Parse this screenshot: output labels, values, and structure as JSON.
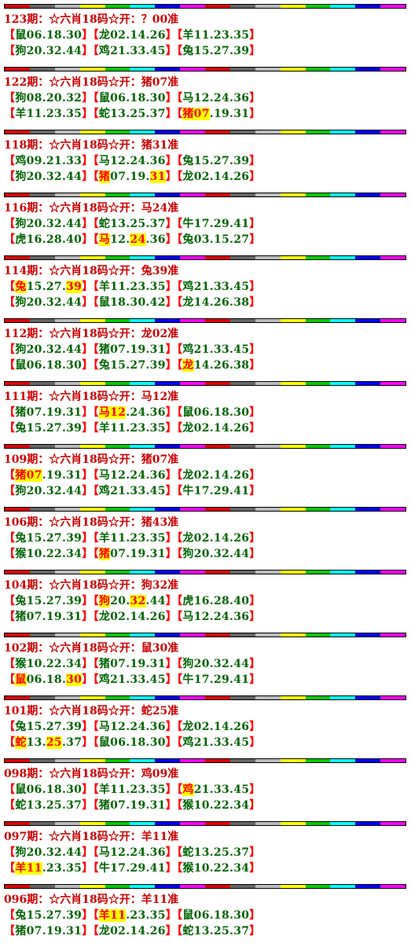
{
  "brackets": [
    "【",
    "】"
  ],
  "blocks": [
    {
      "title": "123期：☆六肖18码☆开：？00准",
      "rows": [
        [
          [
            "鼠06.18.30"
          ],
          [
            "龙02.14.26"
          ],
          [
            "羊11.23.35"
          ]
        ],
        [
          [
            "狗20.32.44"
          ],
          [
            "鸡21.33.45"
          ],
          [
            "兔15.27.39"
          ]
        ]
      ]
    },
    {
      "title": "122期：☆六肖18码☆开：猪07准",
      "rows": [
        [
          [
            "狗08.20.32"
          ],
          [
            "鼠06.18.30"
          ],
          [
            "马12.24.36"
          ]
        ],
        [
          [
            "羊11.23.35"
          ],
          [
            "蛇13.25.37"
          ],
          [
            {
              "text": "猪07",
              "highlight": true
            },
            ".19.31"
          ]
        ]
      ]
    },
    {
      "title": "118期：☆六肖18码☆开：猪31准",
      "rows": [
        [
          [
            "鸡09.21.33"
          ],
          [
            "马12.24.36"
          ],
          [
            "兔15.27.39"
          ]
        ],
        [
          [
            "狗20.32.44"
          ],
          [
            {
              "text": "猪",
              "highlight": true
            },
            "07.19.",
            {
              "text": "31",
              "highlight": true
            }
          ],
          [
            "龙02.14.26"
          ]
        ]
      ]
    },
    {
      "title": "116期：☆六肖18码☆开：马24准",
      "rows": [
        [
          [
            "狗20.32.44"
          ],
          [
            "蛇13.25.37"
          ],
          [
            "牛17.29.41"
          ]
        ],
        [
          [
            "虎16.28.40"
          ],
          [
            {
              "text": "马",
              "highlight": true
            },
            "12.",
            {
              "text": "24",
              "highlight": true
            },
            ".36"
          ],
          [
            "兔03.15.27"
          ]
        ]
      ]
    },
    {
      "title": "114期：☆六肖18码☆开：兔39准",
      "rows": [
        [
          [
            {
              "text": "兔",
              "highlight": true
            },
            "15.27.",
            {
              "text": "39",
              "highlight": true
            }
          ],
          [
            "羊11.23.35"
          ],
          [
            "鸡21.33.45"
          ]
        ],
        [
          [
            "狗20.32.44"
          ],
          [
            "鼠18.30.42"
          ],
          [
            "龙14.26.38"
          ]
        ]
      ]
    },
    {
      "title": "112期：☆六肖18码☆开：龙02准",
      "rows": [
        [
          [
            "狗20.32.44"
          ],
          [
            "猪07.19.31"
          ],
          [
            "鸡21.33.45"
          ]
        ],
        [
          [
            "鼠06.18.30"
          ],
          [
            "兔15.27.39"
          ],
          [
            {
              "text": "龙",
              "highlight": true
            },
            "14.26.38"
          ]
        ]
      ]
    },
    {
      "title": "111期：☆六肖18码☆开：马12准",
      "rows": [
        [
          [
            "猪07.19.31"
          ],
          [
            {
              "text": "马12",
              "highlight": true
            },
            ".24.36"
          ],
          [
            "鼠06.18.30"
          ]
        ],
        [
          [
            "兔15.27.39"
          ],
          [
            "羊11.23.35"
          ],
          [
            "龙02.14.26"
          ]
        ]
      ]
    },
    {
      "title": "109期：☆六肖18码☆开：猪07准",
      "rows": [
        [
          [
            {
              "text": "猪07",
              "highlight": true
            },
            ".19.31"
          ],
          [
            "马12.24.36"
          ],
          [
            "龙02.14.26"
          ]
        ],
        [
          [
            "狗20.32.44"
          ],
          [
            "鸡21.33.45"
          ],
          [
            "牛17.29.41"
          ]
        ]
      ]
    },
    {
      "title": "106期：☆六肖18码☆开：猪43准",
      "rows": [
        [
          [
            "兔15.27.39"
          ],
          [
            "羊11.23.35"
          ],
          [
            "龙02.14.26"
          ]
        ],
        [
          [
            "猴10.22.34"
          ],
          [
            {
              "text": "猪",
              "highlight": true
            },
            "07.19.31"
          ],
          [
            "狗20.32.44"
          ]
        ]
      ]
    },
    {
      "title": "104期：☆六肖18码☆开：狗32准",
      "rows": [
        [
          [
            "兔15.27.39"
          ],
          [
            {
              "text": "狗",
              "highlight": true
            },
            "20.",
            {
              "text": "32",
              "highlight": true
            },
            ".44"
          ],
          [
            "虎16.28.40"
          ]
        ],
        [
          [
            "猪07.19.31"
          ],
          [
            "龙02.14.26"
          ],
          [
            "马12.24.36"
          ]
        ]
      ]
    },
    {
      "title": "102期：☆六肖18码☆开：鼠30准",
      "rows": [
        [
          [
            "猴10.22.34"
          ],
          [
            "猪07.19.31"
          ],
          [
            "狗20.32.44"
          ]
        ],
        [
          [
            {
              "text": "鼠",
              "highlight": true
            },
            "06.18.",
            {
              "text": "30",
              "highlight": true
            }
          ],
          [
            "鸡21.33.45"
          ],
          [
            "牛17.29.41"
          ]
        ]
      ]
    },
    {
      "title": "101期：☆六肖18码☆开：蛇25准",
      "rows": [
        [
          [
            "兔15.27.39"
          ],
          [
            "马12.24.36"
          ],
          [
            "龙02.14.26"
          ]
        ],
        [
          [
            {
              "text": "蛇",
              "highlight": true
            },
            "13.",
            {
              "text": "25",
              "highlight": true
            },
            ".37"
          ],
          [
            "鼠06.18.30"
          ],
          [
            "鸡21.33.45"
          ]
        ]
      ]
    },
    {
      "title": "098期：☆六肖18码☆开：鸡09准",
      "rows": [
        [
          [
            "鼠06.18.30"
          ],
          [
            "羊11.23.35"
          ],
          [
            {
              "text": "鸡",
              "highlight": true
            },
            "21.33.45"
          ]
        ],
        [
          [
            "蛇13.25.37"
          ],
          [
            "猪07.19.31"
          ],
          [
            "猴10.22.34"
          ]
        ]
      ]
    },
    {
      "title": "097期：☆六肖18码☆开：羊11准",
      "rows": [
        [
          [
            "狗20.32.44"
          ],
          [
            "马12.24.36"
          ],
          [
            "蛇13.25.37"
          ]
        ],
        [
          [
            {
              "text": "羊11",
              "highlight": true
            },
            ".23.35"
          ],
          [
            "牛17.29.41"
          ],
          [
            "猴10.22.34"
          ]
        ]
      ]
    },
    {
      "title": "096期：☆六肖18码☆开：羊11准",
      "rows": [
        [
          [
            "兔15.27.39"
          ],
          [
            {
              "text": "羊11",
              "highlight": true
            },
            ".23.35"
          ],
          [
            "鼠06.18.30"
          ]
        ],
        [
          [
            "猪07.19.31"
          ],
          [
            "龙02.14.26"
          ],
          [
            "蛇13.25.37"
          ]
        ]
      ]
    }
  ]
}
